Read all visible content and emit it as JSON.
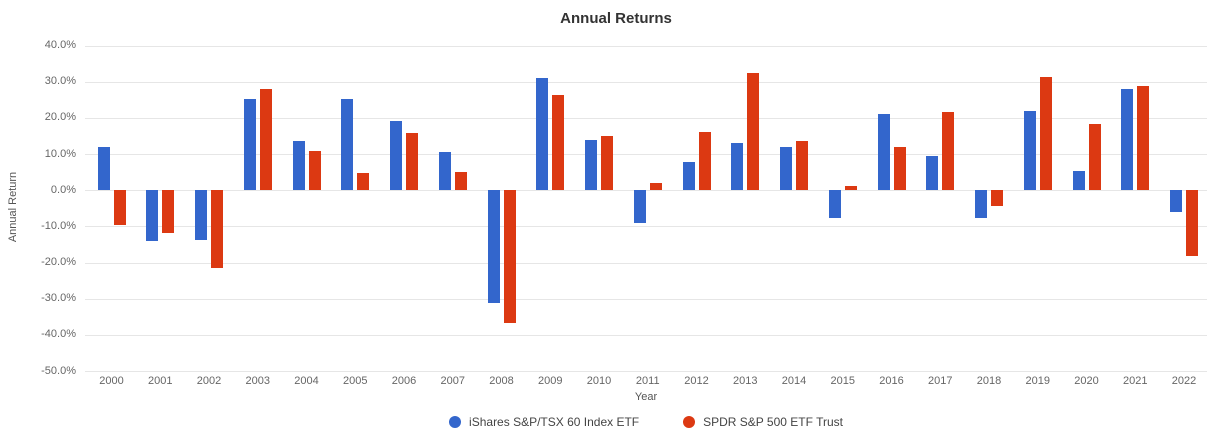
{
  "chart_data": {
    "type": "bar",
    "title": "Annual Returns",
    "xlabel": "Year",
    "ylabel": "Annual Return",
    "ylim": [
      -50,
      40
    ],
    "ytick_step": 10,
    "ytick_suffix": "%",
    "grid": true,
    "legend_position": "bottom",
    "categories": [
      "2000",
      "2001",
      "2002",
      "2003",
      "2004",
      "2005",
      "2006",
      "2007",
      "2008",
      "2009",
      "2010",
      "2011",
      "2012",
      "2013",
      "2014",
      "2015",
      "2016",
      "2017",
      "2018",
      "2019",
      "2020",
      "2021",
      "2022"
    ],
    "series": [
      {
        "key": "ishares",
        "name": "iShares S&P/TSX 60 Index ETF",
        "color": "#3366cc",
        "values": [
          11.8,
          -14.0,
          -13.9,
          25.2,
          13.5,
          25.1,
          19.2,
          10.5,
          -31.2,
          31.0,
          13.8,
          -9.1,
          7.8,
          13.0,
          12.0,
          -7.8,
          21.1,
          9.5,
          -7.6,
          21.9,
          5.2,
          28.0,
          -6.1
        ]
      },
      {
        "key": "spdr",
        "name": "SPDR S&P 500 ETF Trust",
        "color": "#dc3912",
        "values": [
          -9.7,
          -11.8,
          -21.5,
          28.0,
          10.7,
          4.8,
          15.8,
          5.0,
          -36.8,
          26.4,
          15.1,
          1.9,
          16.0,
          32.3,
          13.5,
          1.2,
          12.0,
          21.7,
          -4.5,
          31.2,
          18.4,
          28.7,
          -18.2
        ]
      }
    ]
  },
  "colors": {
    "grid": "#e6e6e6",
    "axis_text": "#666666",
    "title_text": "#333333"
  }
}
